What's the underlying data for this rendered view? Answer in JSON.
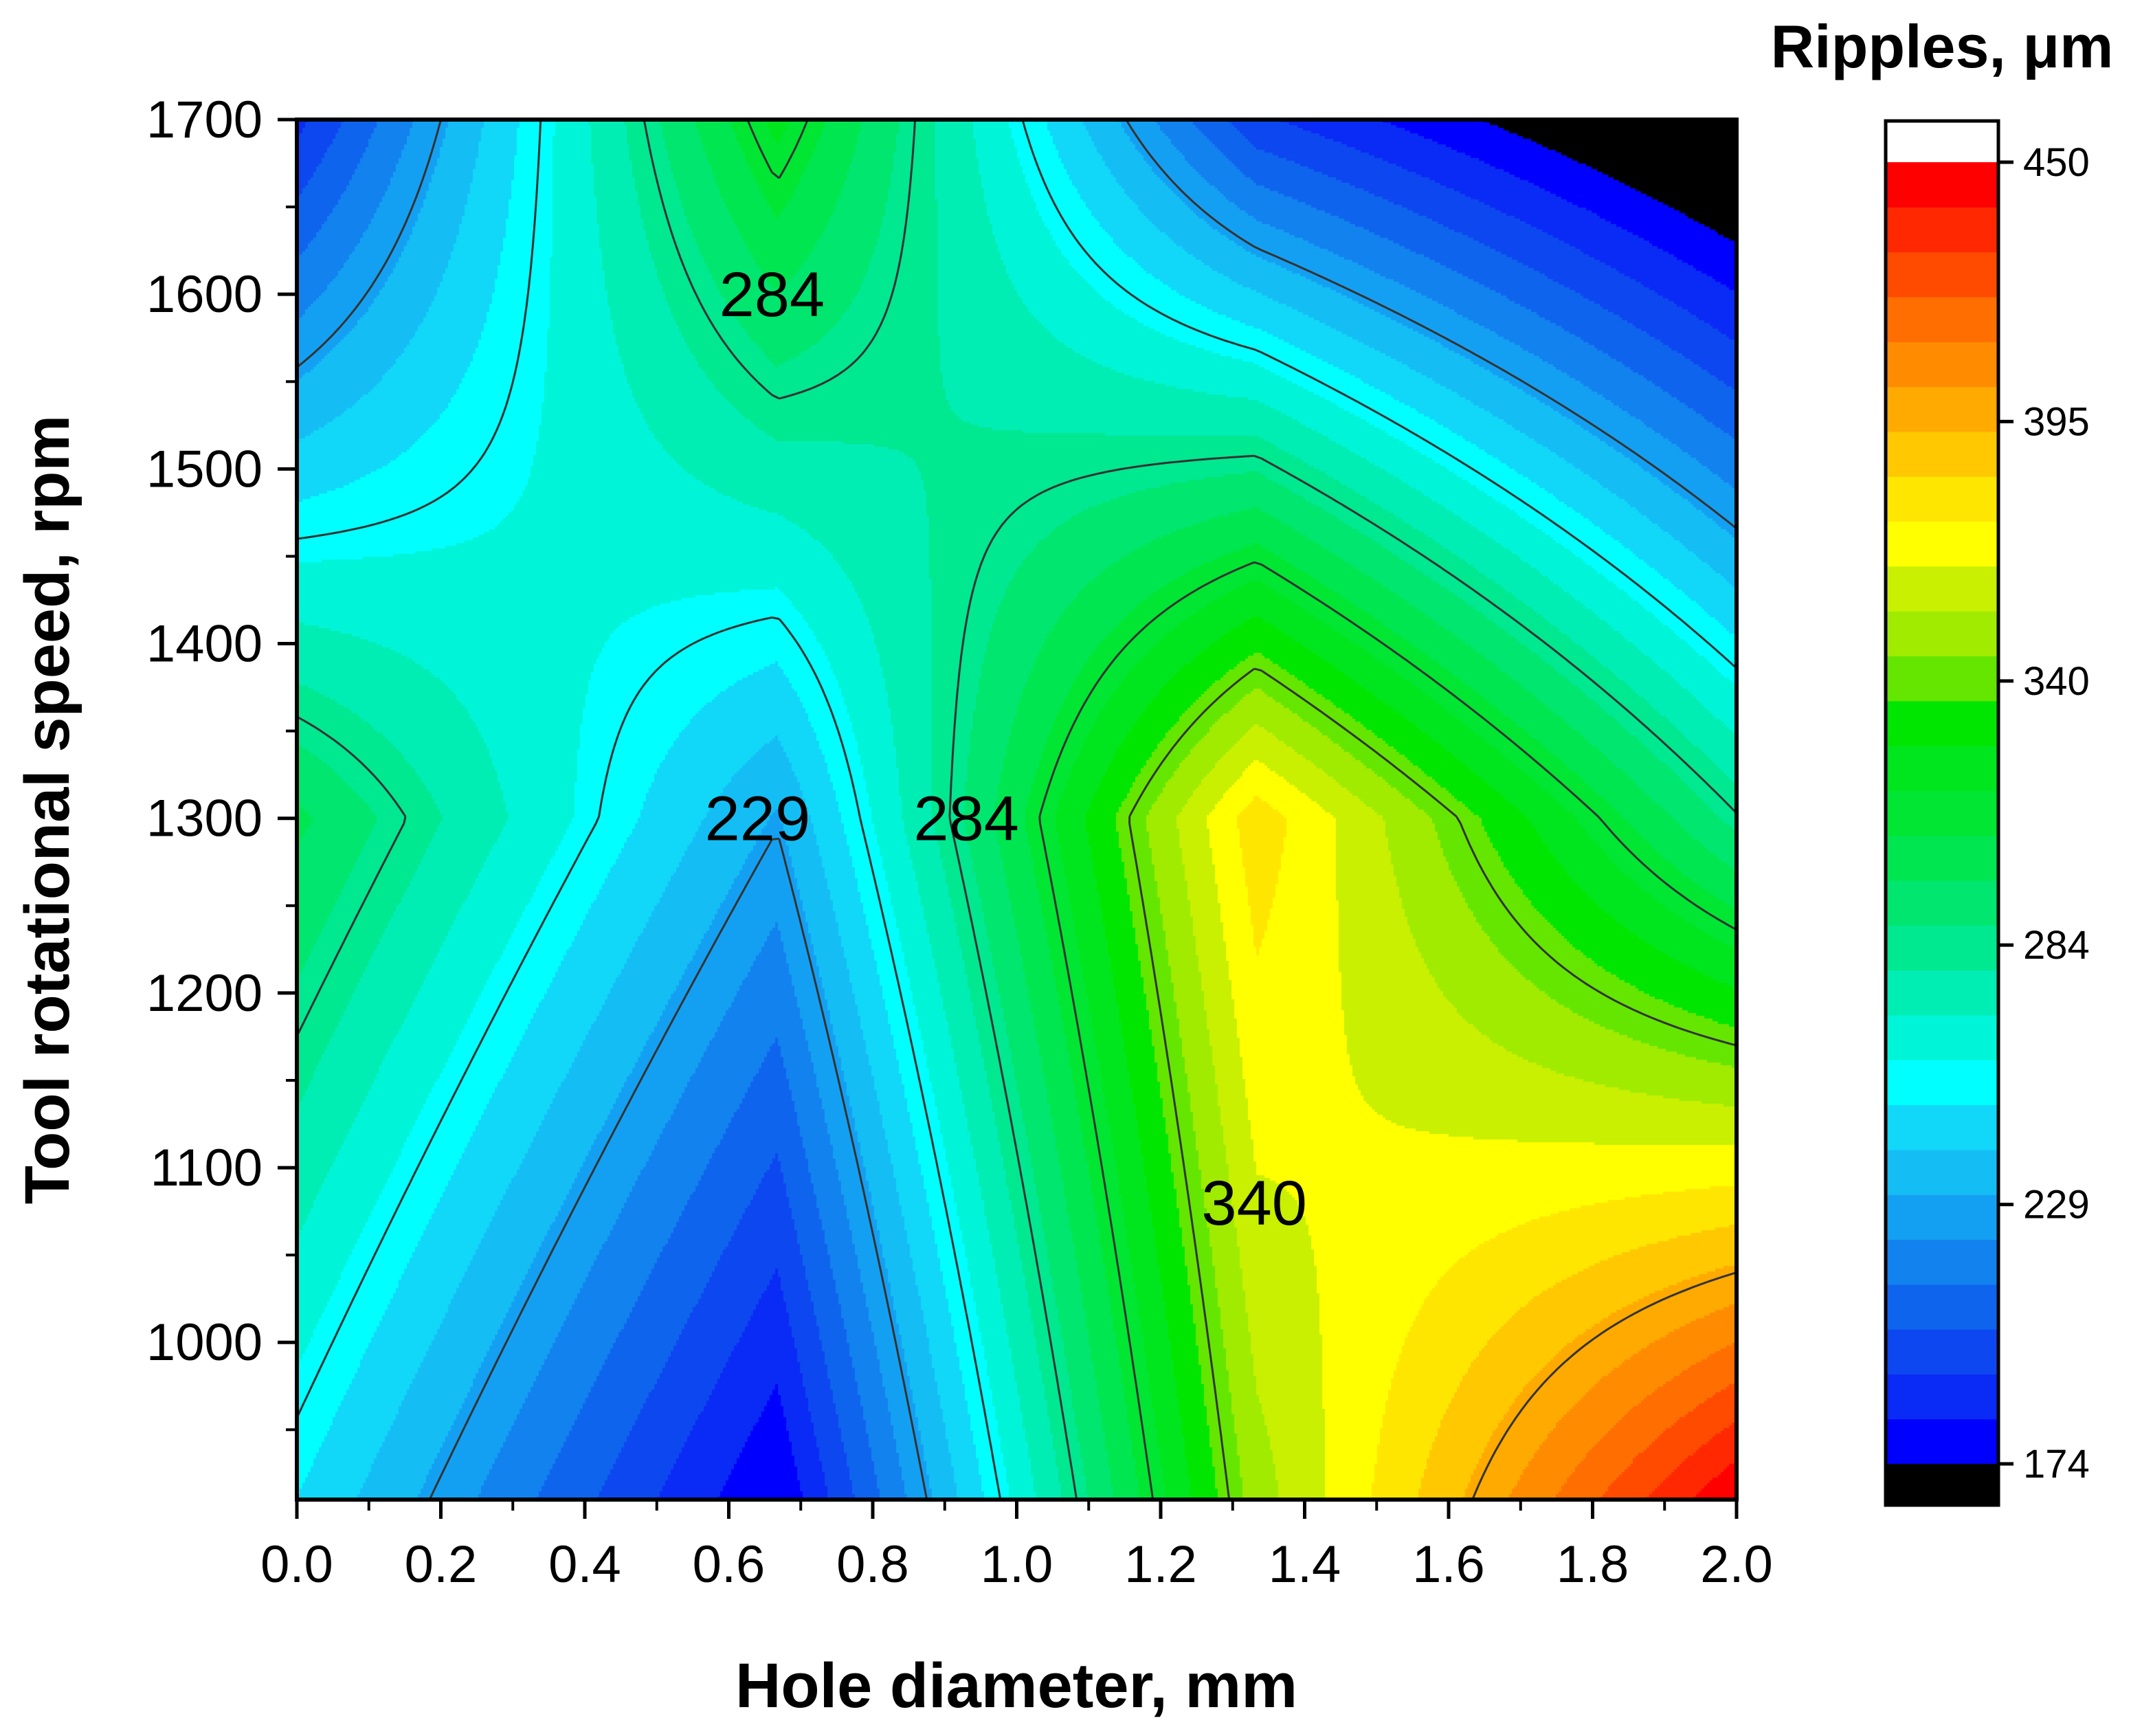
{
  "chart_data": {
    "type": "heatmap",
    "subtype": "filled-contour",
    "xlabel": "Hole diameter, mm",
    "ylabel": "Tool rotational speed, rpm",
    "xlim": [
      0,
      2.0
    ],
    "ylim": [
      910,
      1700
    ],
    "x_ticks": [
      "0.0",
      "0.2",
      "0.4",
      "0.6",
      "0.8",
      "1.0",
      "1.2",
      "1.4",
      "1.6",
      "1.8",
      "2.0"
    ],
    "y_ticks": [
      "1000",
      "1100",
      "1200",
      "1300",
      "1400",
      "1500",
      "1600",
      "1700"
    ],
    "grid": false,
    "colorbar": {
      "title": "Ripples, μm",
      "min": 174,
      "max": 450,
      "ticks": [
        "174",
        "229",
        "284",
        "340",
        "395",
        "450"
      ],
      "colors": [
        "#0000ff",
        "#0a2af5",
        "#0d47f0",
        "#0f64ee",
        "#1282ee",
        "#14a0f2",
        "#14bef5",
        "#11d8f8",
        "#00ffff",
        "#00f5d8",
        "#00eeb4",
        "#00e890",
        "#00e66e",
        "#00e650",
        "#00e632",
        "#00e61e",
        "#00e600",
        "#64e600",
        "#a0eb00",
        "#c8f000",
        "#ffff00",
        "#ffe600",
        "#ffc800",
        "#ffaa00",
        "#ff8c00",
        "#ff6e00",
        "#ff4b00",
        "#ff2800",
        "#ff0000"
      ],
      "under_color": "#000000",
      "over_color": "#ffffff"
    },
    "contour_labels": [
      {
        "text": "284",
        "x": 0.66,
        "y": 1600
      },
      {
        "text": "229",
        "x": 0.64,
        "y": 1300
      },
      {
        "text": "284",
        "x": 0.93,
        "y": 1300
      },
      {
        "text": "340",
        "x": 1.33,
        "y": 1080
      }
    ],
    "grid_x": [
      0,
      0.667,
      1.333,
      2.0
    ],
    "grid_y": [
      910,
      1300,
      1700
    ],
    "z": [
      [
        250,
        174,
        350,
        450
      ],
      [
        300,
        230,
        380,
        285
      ],
      [
        190,
        320,
        195,
        150
      ]
    ]
  }
}
